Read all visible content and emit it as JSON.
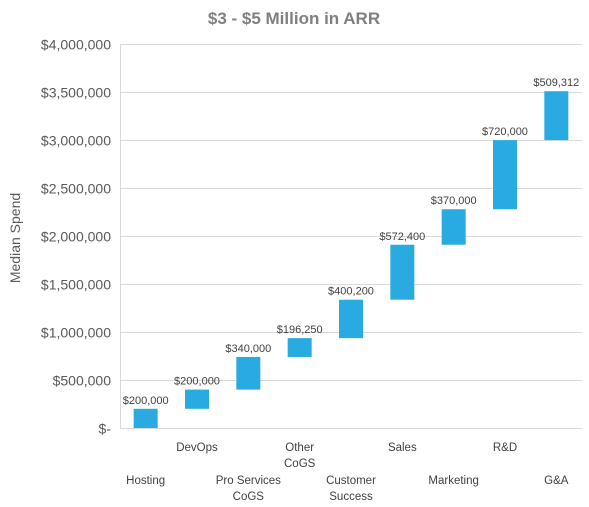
{
  "chart_data": {
    "type": "bar",
    "subtype": "waterfall",
    "title": "$3 - $5 Million in ARR",
    "ylabel": "Median Spend",
    "xlabel": "",
    "ylim": [
      0,
      4000000
    ],
    "y_ticks": [
      0,
      500000,
      1000000,
      1500000,
      2000000,
      2500000,
      3000000,
      3500000,
      4000000
    ],
    "y_tick_labels": [
      "$-",
      "$500,000",
      "$1,000,000",
      "$1,500,000",
      "$2,000,000",
      "$2,500,000",
      "$3,000,000",
      "$3,500,000",
      "$4,000,000"
    ],
    "grid": true,
    "legend": "none",
    "bar_color": "#29abe2",
    "categories": [
      [
        "Hosting"
      ],
      [
        "DevOps"
      ],
      [
        "Pro Services",
        "CoGS"
      ],
      [
        "Other",
        "CoGS"
      ],
      [
        "Customer",
        "Success"
      ],
      [
        "Sales"
      ],
      [
        "Marketing"
      ],
      [
        "R&D"
      ],
      [
        "G&A"
      ]
    ],
    "category_rows": [
      "low",
      "high",
      "low",
      "high",
      "low",
      "high",
      "low",
      "high",
      "low"
    ],
    "base": [
      0,
      200000,
      400000,
      740000,
      936250,
      1336450,
      1908850,
      2278850,
      2998850
    ],
    "values": [
      200000,
      200000,
      340000,
      196250,
      400200,
      572400,
      370000,
      720000,
      509312
    ],
    "data_labels": [
      "$200,000",
      "$200,000",
      "$340,000",
      "$196,250",
      "$400,200",
      "$572,400",
      "$370,000",
      "$720,000",
      "$509,312"
    ]
  }
}
